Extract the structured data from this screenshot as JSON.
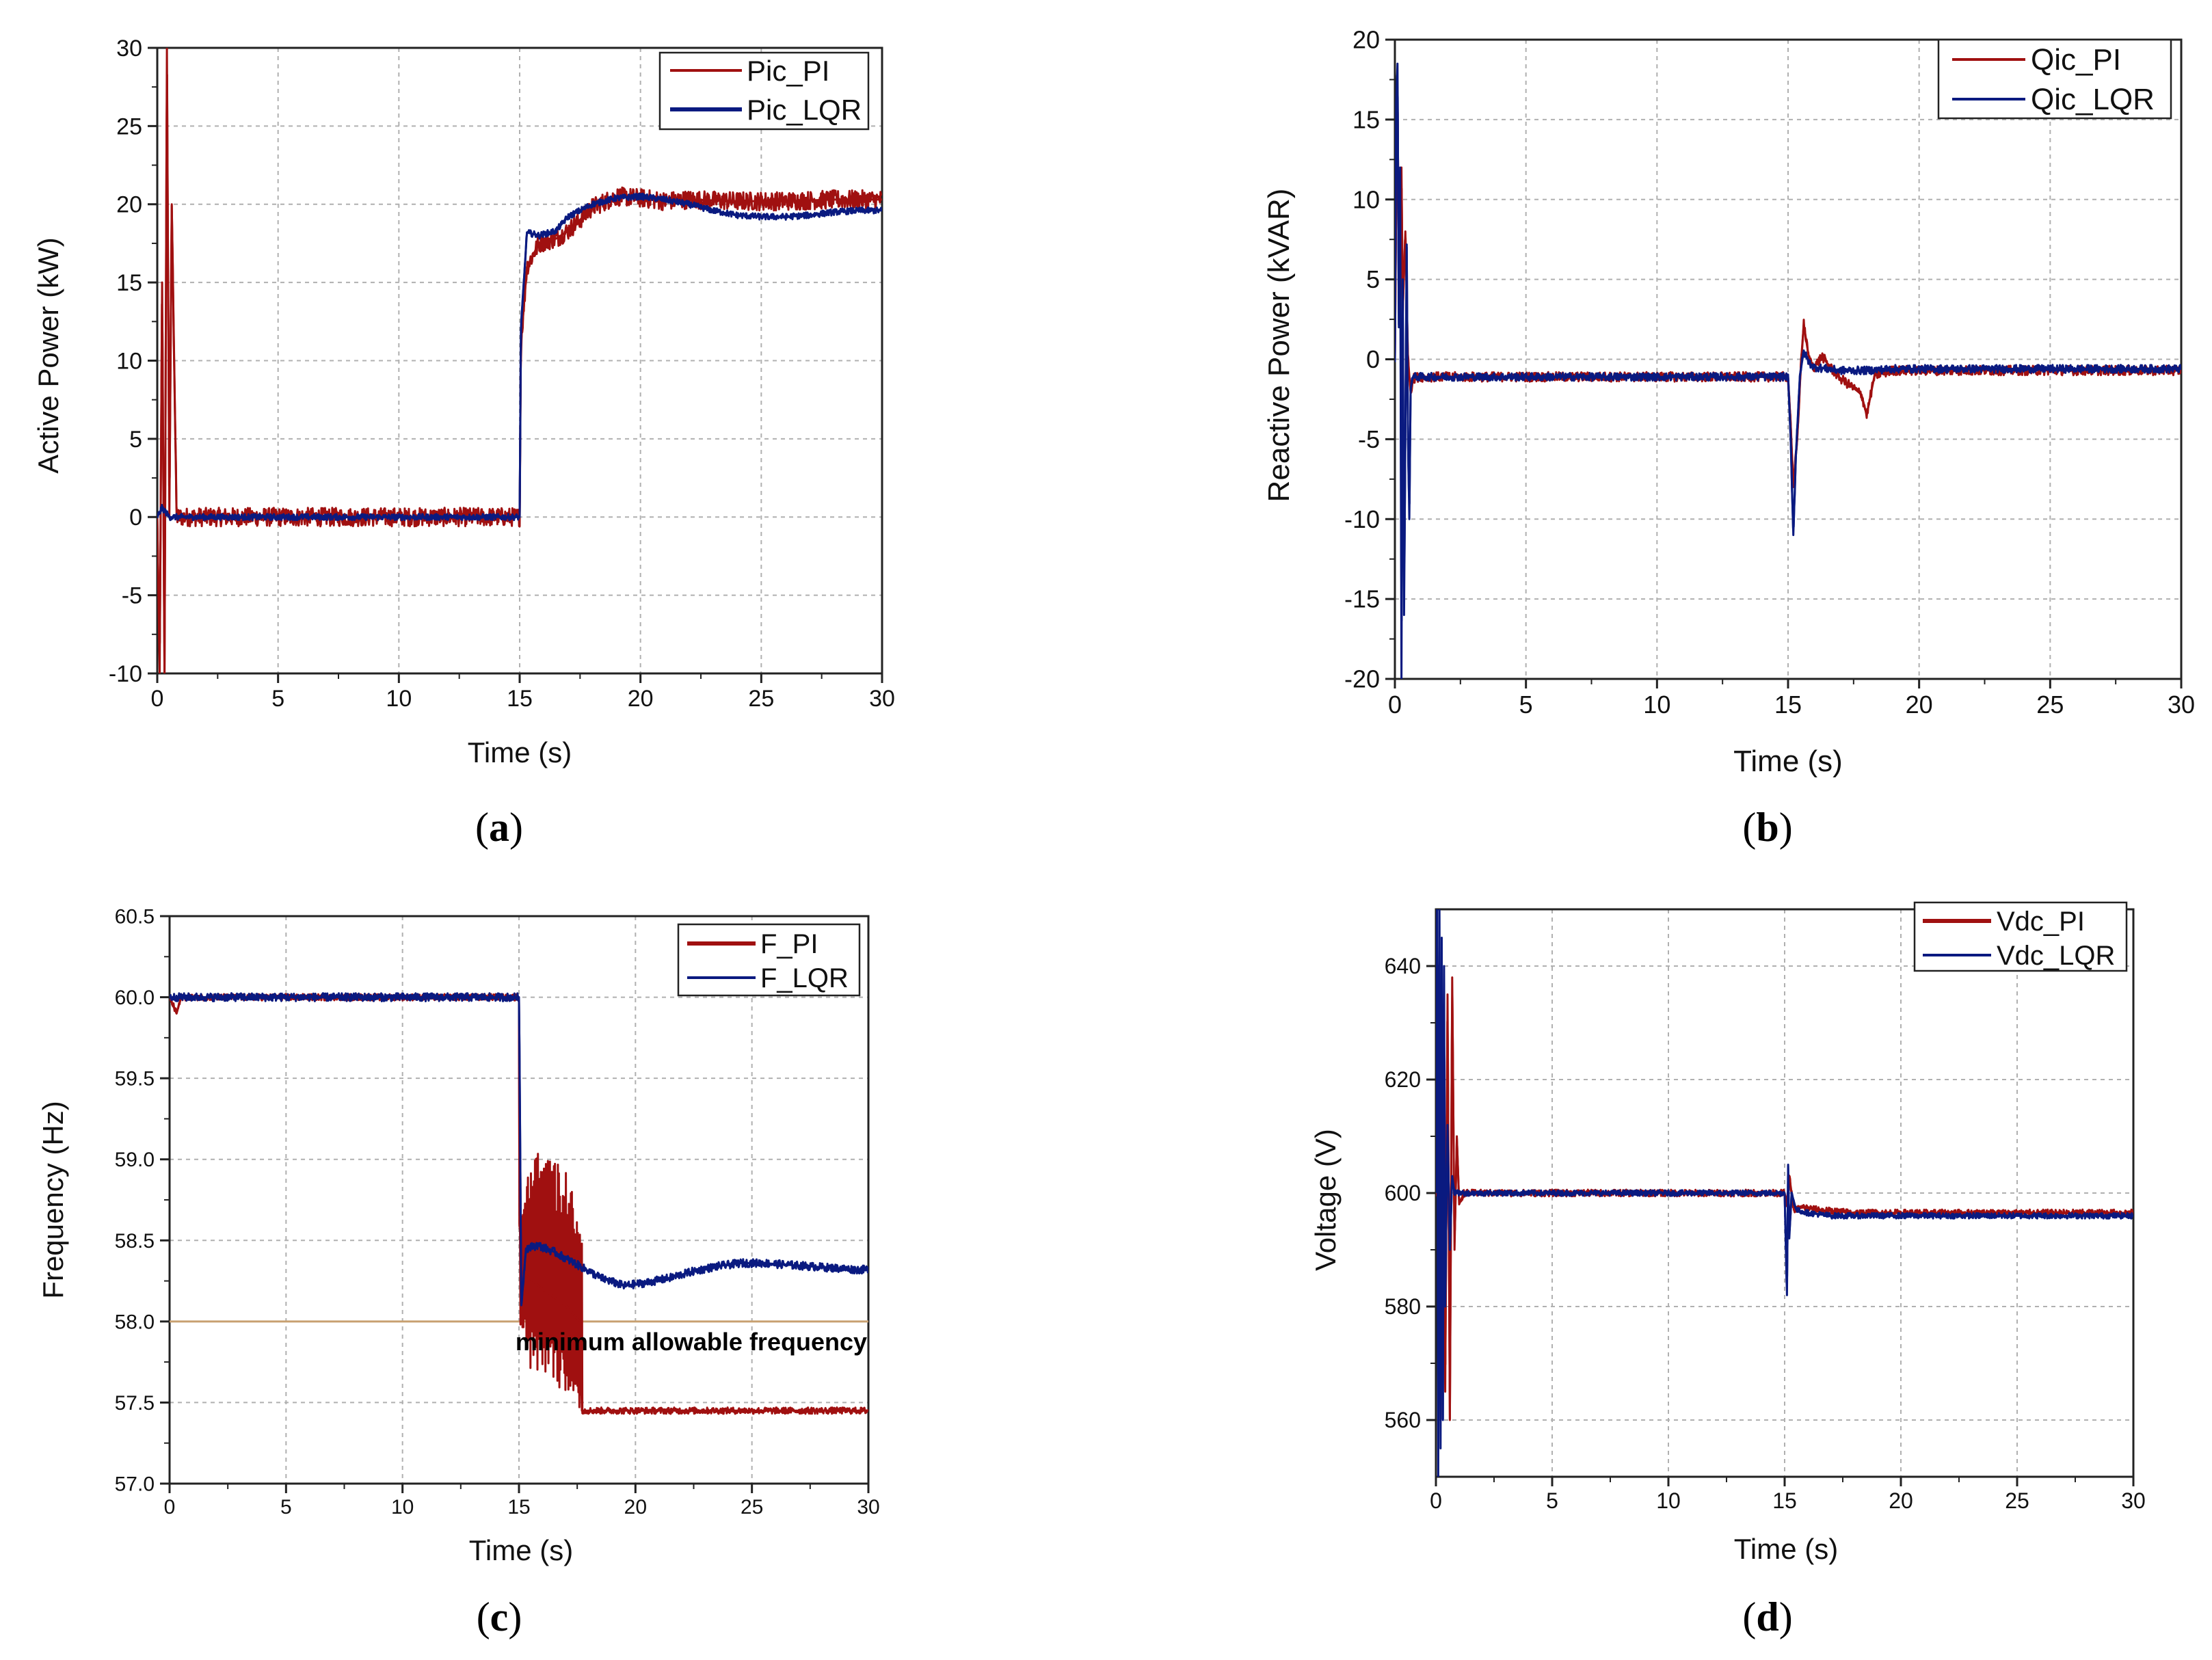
{
  "colors": {
    "pi": "#a01010",
    "lqr": "#0a1a80",
    "grid": "#b0b0b0",
    "limit": "#c8a070"
  },
  "chart_data": [
    {
      "id": "a",
      "type": "line",
      "caption": "a",
      "xlabel": "Time (s)",
      "ylabel": "Active Power (kW)",
      "xlim": [
        0,
        30
      ],
      "ylim": [
        -10,
        30
      ],
      "xticks": [
        "0",
        "5",
        "10",
        "15",
        "20",
        "25",
        "30"
      ],
      "yticks": [
        "-10",
        "-5",
        "0",
        "5",
        "10",
        "15",
        "20",
        "25",
        "30"
      ],
      "xtick_values": [
        0,
        5,
        10,
        15,
        20,
        25,
        30
      ],
      "ytick_values": [
        -10,
        -5,
        0,
        5,
        10,
        15,
        20,
        25,
        30
      ],
      "series": [
        {
          "name": "Pic_PI",
          "color": "#a01010",
          "x": [
            0,
            0.1,
            0.2,
            0.3,
            0.4,
            0.5,
            0.6,
            0.8,
            1,
            5,
            10,
            15,
            15.05,
            15.3,
            15.8,
            16.5,
            17,
            17.5,
            18,
            19,
            20,
            21,
            22,
            24,
            26,
            28,
            30
          ],
          "y": [
            0,
            -10,
            15,
            -10,
            30,
            0,
            20,
            0,
            0,
            0,
            0,
            0,
            11,
            16,
            17.5,
            17.8,
            18.3,
            19,
            19.8,
            20.5,
            20.4,
            20.2,
            20.3,
            20.2,
            20.2,
            20.3,
            20.3
          ],
          "noise": 0.6
        },
        {
          "name": "Pic_LQR",
          "color": "#0a1a80",
          "x": [
            0,
            0.2,
            0.5,
            1,
            5,
            10,
            15,
            15.05,
            15.3,
            15.8,
            16.5,
            17,
            18,
            19,
            20,
            21,
            22,
            23,
            24,
            25,
            26,
            27,
            28,
            29,
            30
          ],
          "y": [
            0,
            0.6,
            0,
            0,
            0,
            0,
            0,
            12,
            18.2,
            18,
            18.3,
            19.2,
            20,
            20.4,
            20.5,
            20.3,
            20,
            19.6,
            19.3,
            19.2,
            19.2,
            19.3,
            19.5,
            19.6,
            19.6
          ],
          "noise": 0.2
        }
      ]
    },
    {
      "id": "b",
      "type": "line",
      "caption": "b",
      "xlabel": "Time (s)",
      "ylabel": "Reactive Power (kVAR)",
      "xlim": [
        0,
        30
      ],
      "ylim": [
        -20,
        20
      ],
      "xticks": [
        "0",
        "5",
        "10",
        "15",
        "20",
        "25",
        "30"
      ],
      "yticks": [
        "-20",
        "-15",
        "-10",
        "-5",
        "0",
        "5",
        "10",
        "15",
        "20"
      ],
      "xtick_values": [
        0,
        5,
        10,
        15,
        20,
        25,
        30
      ],
      "ytick_values": [
        -20,
        -15,
        -10,
        -5,
        0,
        5,
        10,
        15,
        20
      ],
      "series": [
        {
          "name": "Qic_PI",
          "color": "#a01010",
          "x": [
            0,
            0.05,
            0.1,
            0.15,
            0.2,
            0.25,
            0.3,
            0.4,
            0.5,
            0.6,
            0.7,
            0.9,
            1.2,
            5,
            10,
            15,
            15.1,
            15.2,
            15.35,
            15.5,
            15.6,
            15.8,
            16,
            16.3,
            16.6,
            17,
            17.5,
            17.8,
            18,
            18.3,
            19,
            25,
            30
          ],
          "y": [
            0,
            10,
            17,
            5,
            2,
            12,
            3,
            8,
            0,
            -2,
            -1.2,
            -1.1,
            -1.1,
            -1.1,
            -1.1,
            -1.1,
            -4,
            -8,
            -5,
            0,
            2.2,
            0,
            -0.5,
            0.2,
            -0.5,
            -1.2,
            -1.8,
            -2.2,
            -3.5,
            -1,
            -0.7,
            -0.7,
            -0.7
          ],
          "noise": 0.3
        },
        {
          "name": "Qic_LQR",
          "color": "#0a1a80",
          "x": [
            0,
            0.05,
            0.1,
            0.15,
            0.2,
            0.25,
            0.3,
            0.35,
            0.45,
            0.5,
            0.55,
            0.6,
            0.65,
            0.7,
            0.8,
            1,
            5,
            10,
            15,
            15.1,
            15.2,
            15.3,
            15.45,
            15.6,
            15.8,
            16,
            16.5,
            17,
            18,
            19,
            20,
            25,
            30
          ],
          "y": [
            0,
            16,
            18.5,
            2,
            12,
            -20,
            5,
            -16,
            7,
            -5,
            -10,
            -2,
            -1.2,
            -1.1,
            -1.1,
            -1.1,
            -1.1,
            -1.1,
            -1.1,
            -5,
            -11,
            -6,
            -1,
            0.5,
            -0.2,
            -0.5,
            -0.6,
            -0.7,
            -0.7,
            -0.6,
            -0.6,
            -0.6,
            -0.6
          ],
          "noise": 0.25
        }
      ]
    },
    {
      "id": "c",
      "type": "line",
      "caption": "c",
      "xlabel": "Time (s)",
      "ylabel": "Frequency (Hz)",
      "xlim": [
        0,
        30
      ],
      "ylim": [
        57.0,
        60.5
      ],
      "xticks": [
        "0",
        "5",
        "10",
        "15",
        "20",
        "25",
        "30"
      ],
      "yticks": [
        "57.0",
        "57.5",
        "58.0",
        "58.5",
        "59.0",
        "59.5",
        "60.0",
        "60.5"
      ],
      "xtick_values": [
        0,
        5,
        10,
        15,
        20,
        25,
        30
      ],
      "ytick_values": [
        57.0,
        57.5,
        58.0,
        58.5,
        59.0,
        59.5,
        60.0,
        60.5
      ],
      "annotation": "minimum allowable frequency",
      "reference_line": 58.0,
      "series": [
        {
          "name": "F_PI",
          "color": "#a01010",
          "x": [
            0,
            0.3,
            0.5,
            15,
            15.02,
            15.2,
            16,
            17,
            17.6,
            17.7,
            20,
            25,
            30
          ],
          "y": [
            60.0,
            59.9,
            60.0,
            60.0,
            58.6,
            58.3,
            58.2,
            58.1,
            58.0,
            57.45,
            57.45,
            57.45,
            57.45
          ],
          "noise": 0.02,
          "band": {
            "x": [
              15.05,
              15.5,
              16.5,
              17.2,
              17.7
            ],
            "hi": [
              58.6,
              59.1,
              59.0,
              58.9,
              58.5
            ],
            "lo": [
              57.9,
              57.7,
              57.6,
              57.55,
              57.45
            ]
          }
        },
        {
          "name": "F_LQR",
          "color": "#0a1a80",
          "x": [
            0,
            15,
            15.02,
            15.1,
            15.3,
            15.8,
            16.5,
            17.5,
            18.5,
            19.5,
            20.5,
            21.5,
            22.5,
            23.5,
            24.5,
            25.5,
            26.5,
            27.5,
            28.5,
            29.5,
            30
          ],
          "y": [
            60.0,
            60.0,
            59.7,
            58.1,
            58.45,
            58.47,
            58.43,
            58.35,
            58.27,
            58.22,
            58.24,
            58.27,
            58.31,
            58.34,
            58.36,
            58.36,
            58.35,
            58.34,
            58.33,
            58.32,
            58.32
          ],
          "noise": 0.025
        }
      ]
    },
    {
      "id": "d",
      "type": "line",
      "caption": "d",
      "xlabel": "Time (s)",
      "ylabel": "Voltage (V)",
      "xlim": [
        0,
        30
      ],
      "ylim": [
        550,
        650
      ],
      "xticks": [
        "0",
        "5",
        "10",
        "15",
        "20",
        "25",
        "30"
      ],
      "yticks": [
        "560",
        "580",
        "600",
        "620",
        "640"
      ],
      "xtick_values": [
        0,
        5,
        10,
        15,
        20,
        25,
        30
      ],
      "ytick_values": [
        560,
        580,
        600,
        620,
        640
      ],
      "series": [
        {
          "name": "Vdc_PI",
          "color": "#a01010",
          "x": [
            0,
            0.1,
            0.2,
            0.3,
            0.4,
            0.5,
            0.6,
            0.7,
            0.8,
            0.9,
            1.0,
            1.2,
            5,
            10,
            15,
            15.1,
            15.2,
            15.4,
            15.8,
            16.5,
            18,
            25,
            30
          ],
          "y": [
            600,
            640,
            560,
            625,
            565,
            635,
            560,
            638,
            590,
            610,
            598,
            600,
            600,
            600,
            600,
            598,
            603,
            597,
            597.5,
            597,
            596.5,
            596.5,
            596.5
          ],
          "noise": 0.6
        },
        {
          "name": "Vdc_LQR",
          "color": "#0a1a80",
          "x": [
            0,
            0.05,
            0.1,
            0.15,
            0.2,
            0.25,
            0.3,
            0.35,
            0.4,
            0.5,
            0.6,
            0.7,
            0.8,
            1.0,
            5,
            10,
            15,
            15.1,
            15.15,
            15.2,
            15.3,
            15.5,
            16,
            17,
            20,
            25,
            30
          ],
          "y": [
            600,
            650,
            550,
            650,
            555,
            645,
            560,
            640,
            580,
            612,
            590,
            603,
            600,
            600,
            600,
            600,
            600,
            582,
            605,
            592,
            600,
            597,
            596.5,
            596,
            596,
            596,
            596
          ],
          "noise": 0.5
        }
      ]
    }
  ]
}
